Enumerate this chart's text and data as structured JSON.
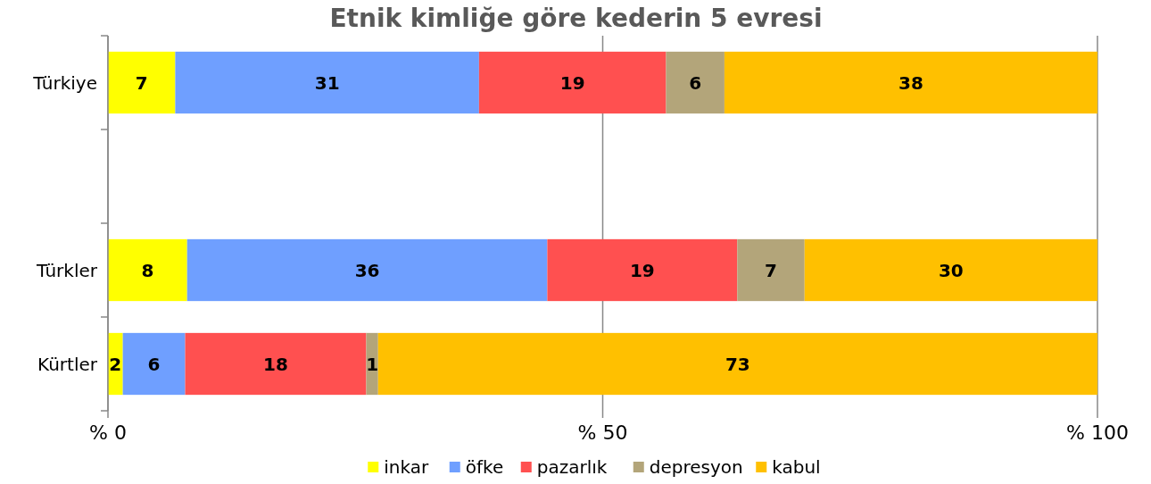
{
  "chart_data": {
    "type": "bar",
    "orientation": "horizontal",
    "stacked": true,
    "title": "Etnik kimliğe göre kederin 5 evresi",
    "categories": [
      "Türkiye",
      null,
      "Türkler",
      "Kürtler"
    ],
    "series": [
      {
        "name": "inkar",
        "color": "#ffff00",
        "values": [
          6.8,
          null,
          8.0,
          1.5
        ],
        "value_labels": [
          "7",
          null,
          "8",
          "2"
        ]
      },
      {
        "name": "öfke",
        "color": "#6f9fff",
        "values": [
          30.7,
          null,
          36.4,
          6.3
        ],
        "value_labels": [
          "31",
          null,
          "36",
          "6"
        ]
      },
      {
        "name": "pazarlık",
        "color": "#ff5050",
        "values": [
          18.9,
          null,
          19.2,
          18.3
        ],
        "value_labels": [
          "19",
          null,
          "19",
          "18"
        ]
      },
      {
        "name": "depresyon",
        "color": "#b3a57a",
        "values": [
          5.9,
          null,
          6.8,
          1.2
        ],
        "value_labels": [
          "6",
          null,
          "7",
          "1"
        ]
      },
      {
        "name": "kabul",
        "color": "#ffc000",
        "values": [
          37.7,
          null,
          29.6,
          72.7
        ],
        "value_labels": [
          "38",
          null,
          "30",
          "73"
        ]
      }
    ],
    "xlim": [
      0,
      100
    ],
    "xticks": [
      {
        "value": 0,
        "label": "% 0"
      },
      {
        "value": 50,
        "label": "% 50"
      },
      {
        "value": 100,
        "label": "% 100"
      }
    ],
    "grid": "x",
    "legend": "bottom"
  }
}
